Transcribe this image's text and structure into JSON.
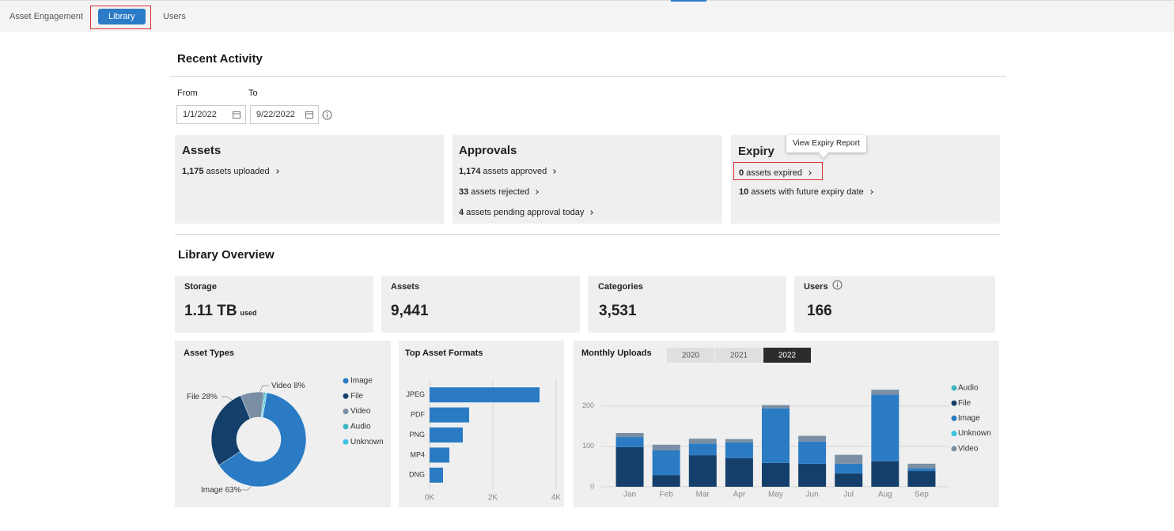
{
  "nav": {
    "tabs": [
      "Asset Engagement",
      "Library",
      "Users"
    ],
    "active_tab": "Library"
  },
  "recent_activity": {
    "title": "Recent Activity",
    "from_label": "From",
    "to_label": "To",
    "from_date": "1/1/2022",
    "to_date": "9/22/2022",
    "cards": [
      {
        "title": "Assets",
        "items": [
          {
            "count": "1,175",
            "text": "assets uploaded"
          }
        ]
      },
      {
        "title": "Approvals",
        "items": [
          {
            "count": "1,174",
            "text": "assets approved"
          },
          {
            "count": "33",
            "text": "assets rejected"
          },
          {
            "count": "4",
            "text": "assets pending approval today"
          }
        ]
      },
      {
        "title": "Expiry",
        "tooltip": "View Expiry Report",
        "items": [
          {
            "count": "0",
            "text": "assets expired"
          },
          {
            "count": "10",
            "text": "assets with future expiry date"
          }
        ]
      }
    ]
  },
  "library_overview": {
    "title": "Library Overview",
    "stats": [
      {
        "label": "Storage",
        "value": "1.11 TB",
        "unit": "used"
      },
      {
        "label": "Assets",
        "value": "9,441"
      },
      {
        "label": "Categories",
        "value": "3,531"
      },
      {
        "label": "Users",
        "value": "166"
      }
    ]
  },
  "chart_data": [
    {
      "type": "pie",
      "title": "Asset Types",
      "categories": [
        "Image",
        "File",
        "Video",
        "Audio",
        "Unknown"
      ],
      "values": [
        63,
        28,
        8,
        0.5,
        0.5
      ],
      "value_labels": [
        "63%",
        "28%",
        "8%",
        null,
        null
      ],
      "colors": [
        "#2a7bc4",
        "#143f6b",
        "#7a8fa3",
        "#3bb3c3",
        "#3fc3e0"
      ],
      "donut": true
    },
    {
      "type": "bar",
      "title": "Top Asset Formats",
      "orientation": "horizontal",
      "categories": [
        "JPEG",
        "PDF",
        "PNG",
        "MP4",
        "DNG"
      ],
      "values": [
        3475,
        1250,
        1050,
        625,
        425
      ],
      "color": "#2a7bc4",
      "xlim": [
        0,
        4000
      ],
      "xticks": [
        {
          "value": 0,
          "label": "0K"
        },
        {
          "value": 2000,
          "label": "2K"
        },
        {
          "value": 4000,
          "label": "4K"
        }
      ],
      "grid": true
    },
    {
      "type": "bar",
      "title": "Monthly Uploads",
      "stacked": true,
      "years": [
        "2020",
        "2021",
        "2022"
      ],
      "selected_year": "2022",
      "categories": [
        "Jan",
        "Feb",
        "Mar",
        "Apr",
        "May",
        "Jun",
        "Jul",
        "Aug",
        "Sep"
      ],
      "series": [
        {
          "name": "Audio",
          "color": "#3bb3c3",
          "values": [
            0,
            0,
            0,
            0,
            0,
            0,
            0,
            0,
            0
          ]
        },
        {
          "name": "File",
          "color": "#143f6b",
          "values": [
            98,
            29,
            78,
            71,
            59,
            57,
            33,
            63,
            39
          ]
        },
        {
          "name": "Image",
          "color": "#2a7bc4",
          "values": [
            25,
            61,
            29,
            39,
            135,
            55,
            24,
            165,
            6
          ]
        },
        {
          "name": "Unknown",
          "color": "#3fc3e0",
          "values": [
            0,
            0,
            0,
            0,
            0,
            0,
            0,
            0,
            0
          ]
        },
        {
          "name": "Video",
          "color": "#7a8fa3",
          "values": [
            10,
            14,
            12,
            8,
            8,
            14,
            22,
            12,
            12
          ]
        }
      ],
      "ylim": [
        0,
        260
      ],
      "yticks": [
        0,
        100,
        200
      ],
      "grid": true
    }
  ]
}
